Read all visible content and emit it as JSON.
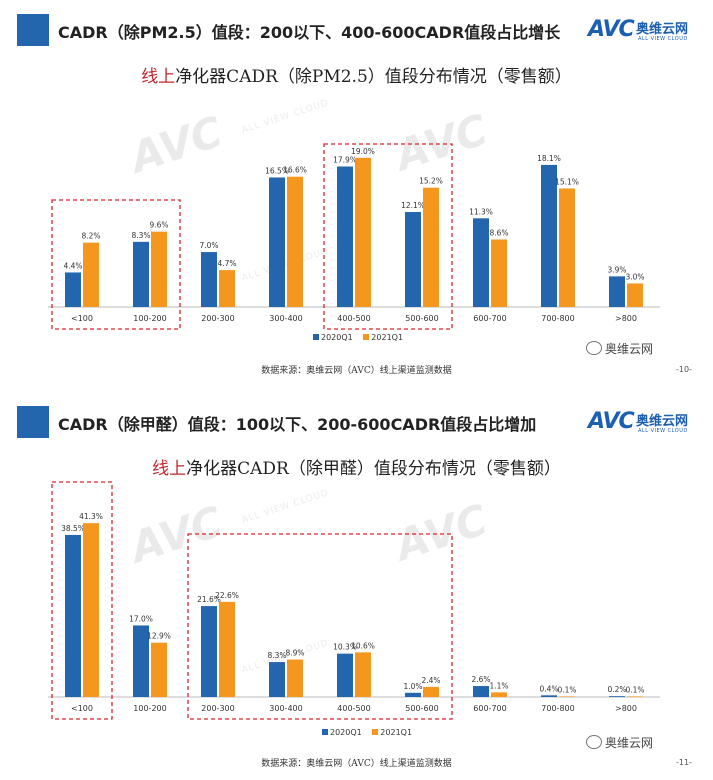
{
  "colors": {
    "series1": "#2466ad",
    "series2": "#f5961e",
    "highlight": "#d9262c",
    "accent_red": "#c0262d"
  },
  "slide1": {
    "header_title": "CADR（除PM2.5）值段：200以下、400-600CADR值段占比增长",
    "logo_text": "AVC",
    "logo_cn": "奥维云网",
    "logo_sub": "ALL VIEW CLOUD",
    "chart_title_red": "线上",
    "chart_title_rest": "净化器CADR（除PM2.5）值段分布情况（零售额）",
    "watermark": "AVC",
    "watermark_sub": "ALL VIEW CLOUD",
    "legend": [
      "2020Q1",
      "2021Q1"
    ],
    "source": "数据来源：奥维云网（AVC）线上渠道监测数据",
    "page": "-10-",
    "wechat": "奥维云网"
  },
  "slide2": {
    "header_title": "CADR（除甲醛）值段：100以下、200-600CADR值段占比增加",
    "logo_text": "AVC",
    "logo_cn": "奥维云网",
    "logo_sub": "ALL VIEW CLOUD",
    "chart_title_red": "线上",
    "chart_title_rest": "净化器CADR（除甲醛）值段分布情况（零售额）",
    "watermark": "AVC",
    "watermark_sub": "ALL VIEW CLOUD",
    "legend": [
      "2020Q1",
      "2021Q1"
    ],
    "source": "数据来源：奥维云网（AVC）线上渠道监测数据",
    "page": "-11-",
    "wechat": "奥维云网"
  },
  "chart_data": [
    {
      "type": "bar",
      "title": "线上净化器CADR（除PM2.5）值段分布情况（零售额）",
      "categories": [
        "<100",
        "100-200",
        "200-300",
        "300-400",
        "400-500",
        "500-600",
        "600-700",
        "700-800",
        ">800"
      ],
      "series": [
        {
          "name": "2020Q1",
          "values": [
            4.4,
            8.3,
            7.0,
            16.5,
            17.9,
            12.1,
            11.3,
            18.1,
            3.9
          ]
        },
        {
          "name": "2021Q1",
          "values": [
            8.2,
            9.6,
            4.7,
            16.6,
            19.0,
            15.2,
            8.6,
            15.1,
            3.0
          ]
        }
      ],
      "labels": [
        [
          "4.4%",
          "8.3%",
          "7.0%",
          "16.5%",
          "17.9%",
          "12.1%",
          "11.3%",
          "18.1%",
          "3.9%"
        ],
        [
          "8.2%",
          "9.6%",
          "4.7%",
          "16.6%",
          "19.0%",
          "15.2%",
          "8.6%",
          "15.1%",
          "3.0%"
        ]
      ],
      "ylim": [
        0,
        20
      ],
      "highlight_groups": [
        [
          0,
          1
        ],
        [
          4,
          5
        ]
      ],
      "legend": "bottom-center"
    },
    {
      "type": "bar",
      "title": "线上净化器CADR（除甲醛）值段分布情况（零售额）",
      "categories": [
        "<100",
        "100-200",
        "200-300",
        "300-400",
        "400-500",
        "500-600",
        "600-700",
        "700-800",
        ">800"
      ],
      "series": [
        {
          "name": "2020Q1",
          "values": [
            38.5,
            17.0,
            21.6,
            8.3,
            10.3,
            1.0,
            2.6,
            0.4,
            0.2
          ]
        },
        {
          "name": "2021Q1",
          "values": [
            41.3,
            12.9,
            22.6,
            8.9,
            10.6,
            2.4,
            1.1,
            0.1,
            0.1
          ]
        }
      ],
      "labels": [
        [
          "38.5%",
          "17.0%",
          "21.6%",
          "8.3%",
          "10.3%",
          "1.0%",
          "2.6%",
          "0.4%",
          "0.2%"
        ],
        [
          "41.3%",
          "12.9%",
          "22.6%",
          "8.9%",
          "10.6%",
          "2.4%",
          "1.1%",
          "0.1%",
          "0.1%"
        ]
      ],
      "ylim": [
        0,
        43
      ],
      "highlight_groups": [
        [
          0,
          0
        ],
        [
          2,
          5
        ]
      ],
      "legend": "bottom-center"
    }
  ]
}
